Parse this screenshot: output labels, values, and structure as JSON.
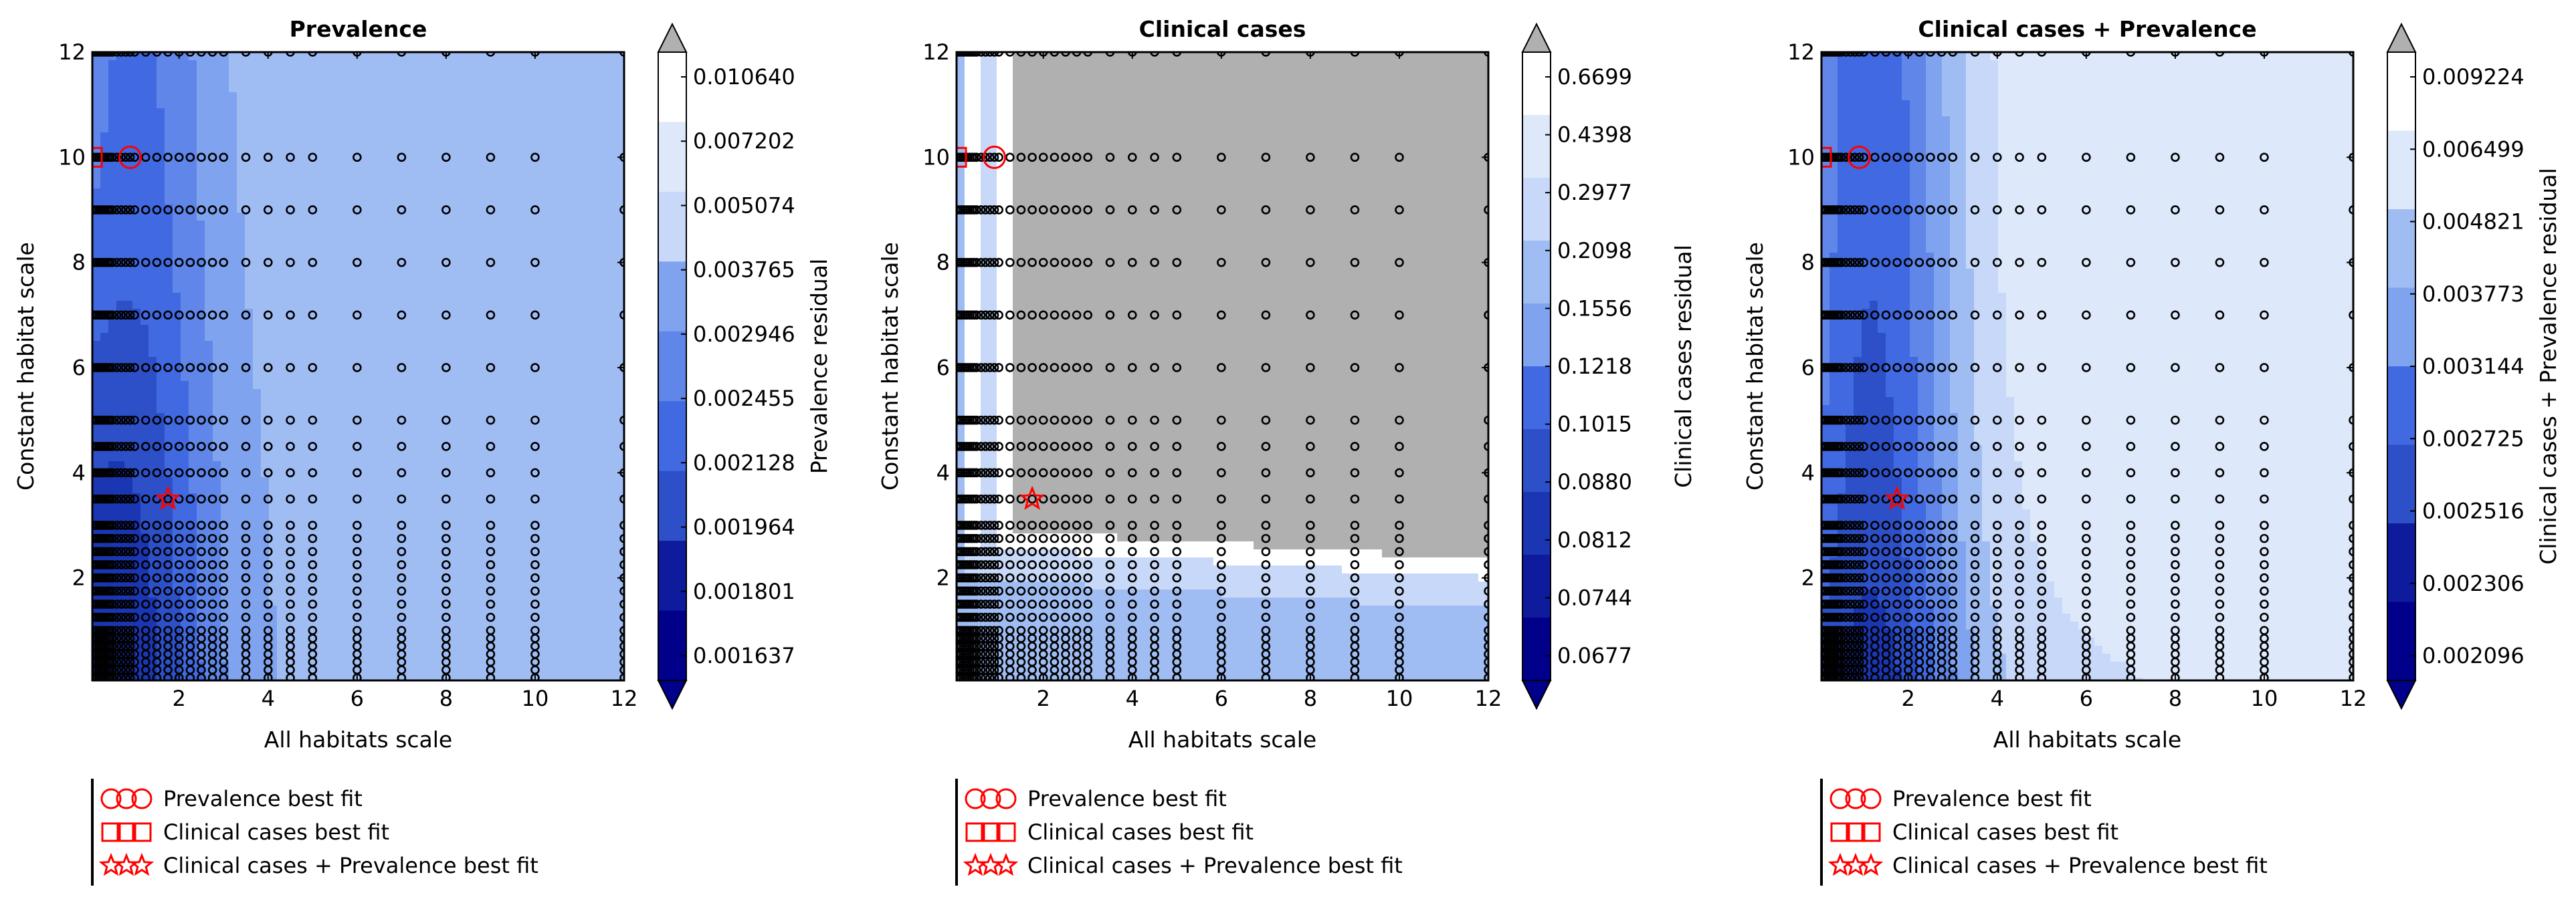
{
  "colors": {
    "contour_levels": [
      "#00008b",
      "#0d1b9c",
      "#1a36b2",
      "#2d50c8",
      "#4169e1",
      "#5f86e8",
      "#7fa3ee",
      "#a0bdf3",
      "#c8d8f8",
      "#dde8fb",
      "#ffffff"
    ],
    "over": "#b0b0b0",
    "marker": "#ff0000",
    "points": "#000000"
  },
  "legend": {
    "items": [
      {
        "marker": "circle",
        "label": "Prevalence best fit"
      },
      {
        "marker": "square",
        "label": "Clinical cases best fit"
      },
      {
        "marker": "star",
        "label": "Clinical cases + Prevalence best fit"
      }
    ]
  },
  "chart_data": [
    {
      "type": "heatmap",
      "title": "Prevalence",
      "xlabel": "All habitats scale",
      "ylabel": "Constant habitat scale",
      "xlim": [
        0.05,
        12
      ],
      "ylim": [
        0.05,
        12
      ],
      "xticks": [
        "2",
        "4",
        "6",
        "8",
        "10",
        "12"
      ],
      "yticks": [
        "2",
        "4",
        "6",
        "8",
        "10",
        "12"
      ],
      "colorbar": {
        "label": "Prevalence residual",
        "levels": [
          "0.010640",
          "0.007202",
          "0.005074",
          "0.003765",
          "0.002946",
          "0.002455",
          "0.002128",
          "0.001964",
          "0.001801",
          "0.001637"
        ],
        "extend": "both"
      },
      "best_fit": {
        "prevalence": {
          "x": 0.9,
          "y": 10
        },
        "clinical_cases": {
          "x": 0.05,
          "y": 10
        },
        "combined": {
          "x": 1.75,
          "y": 3.5
        }
      },
      "grid": false
    },
    {
      "type": "heatmap",
      "title": "Clinical cases",
      "xlabel": "All habitats scale",
      "ylabel": "Constant habitat scale",
      "xlim": [
        0.05,
        12
      ],
      "ylim": [
        0.05,
        12
      ],
      "xticks": [
        "2",
        "4",
        "6",
        "8",
        "10",
        "12"
      ],
      "yticks": [
        "2",
        "4",
        "6",
        "8",
        "10",
        "12"
      ],
      "colorbar": {
        "label": "Clinical cases residual",
        "levels": [
          "0.6699",
          "0.4398",
          "0.2977",
          "0.2098",
          "0.1556",
          "0.1218",
          "0.1015",
          "0.0880",
          "0.0812",
          "0.0744",
          "0.0677"
        ],
        "extend": "both"
      },
      "best_fit": {
        "prevalence": {
          "x": 0.9,
          "y": 10
        },
        "clinical_cases": {
          "x": 0.05,
          "y": 10
        },
        "combined": {
          "x": 1.75,
          "y": 3.5
        }
      },
      "grid": false
    },
    {
      "type": "heatmap",
      "title": "Clinical cases + Prevalence",
      "xlabel": "All habitats scale",
      "ylabel": "Constant habitat scale",
      "xlim": [
        0.05,
        12
      ],
      "ylim": [
        0.05,
        12
      ],
      "xticks": [
        "2",
        "4",
        "6",
        "8",
        "10",
        "12"
      ],
      "yticks": [
        "2",
        "4",
        "6",
        "8",
        "10",
        "12"
      ],
      "colorbar": {
        "label": "Clinical cases + Prevalence residual",
        "levels": [
          "0.009224",
          "0.006499",
          "0.004821",
          "0.003773",
          "0.003144",
          "0.002725",
          "0.002516",
          "0.002306",
          "0.002096"
        ],
        "extend": "both"
      },
      "best_fit": {
        "prevalence": {
          "x": 0.9,
          "y": 10
        },
        "clinical_cases": {
          "x": 0.05,
          "y": 10
        },
        "combined": {
          "x": 1.75,
          "y": 3.5
        }
      },
      "grid": false
    }
  ]
}
